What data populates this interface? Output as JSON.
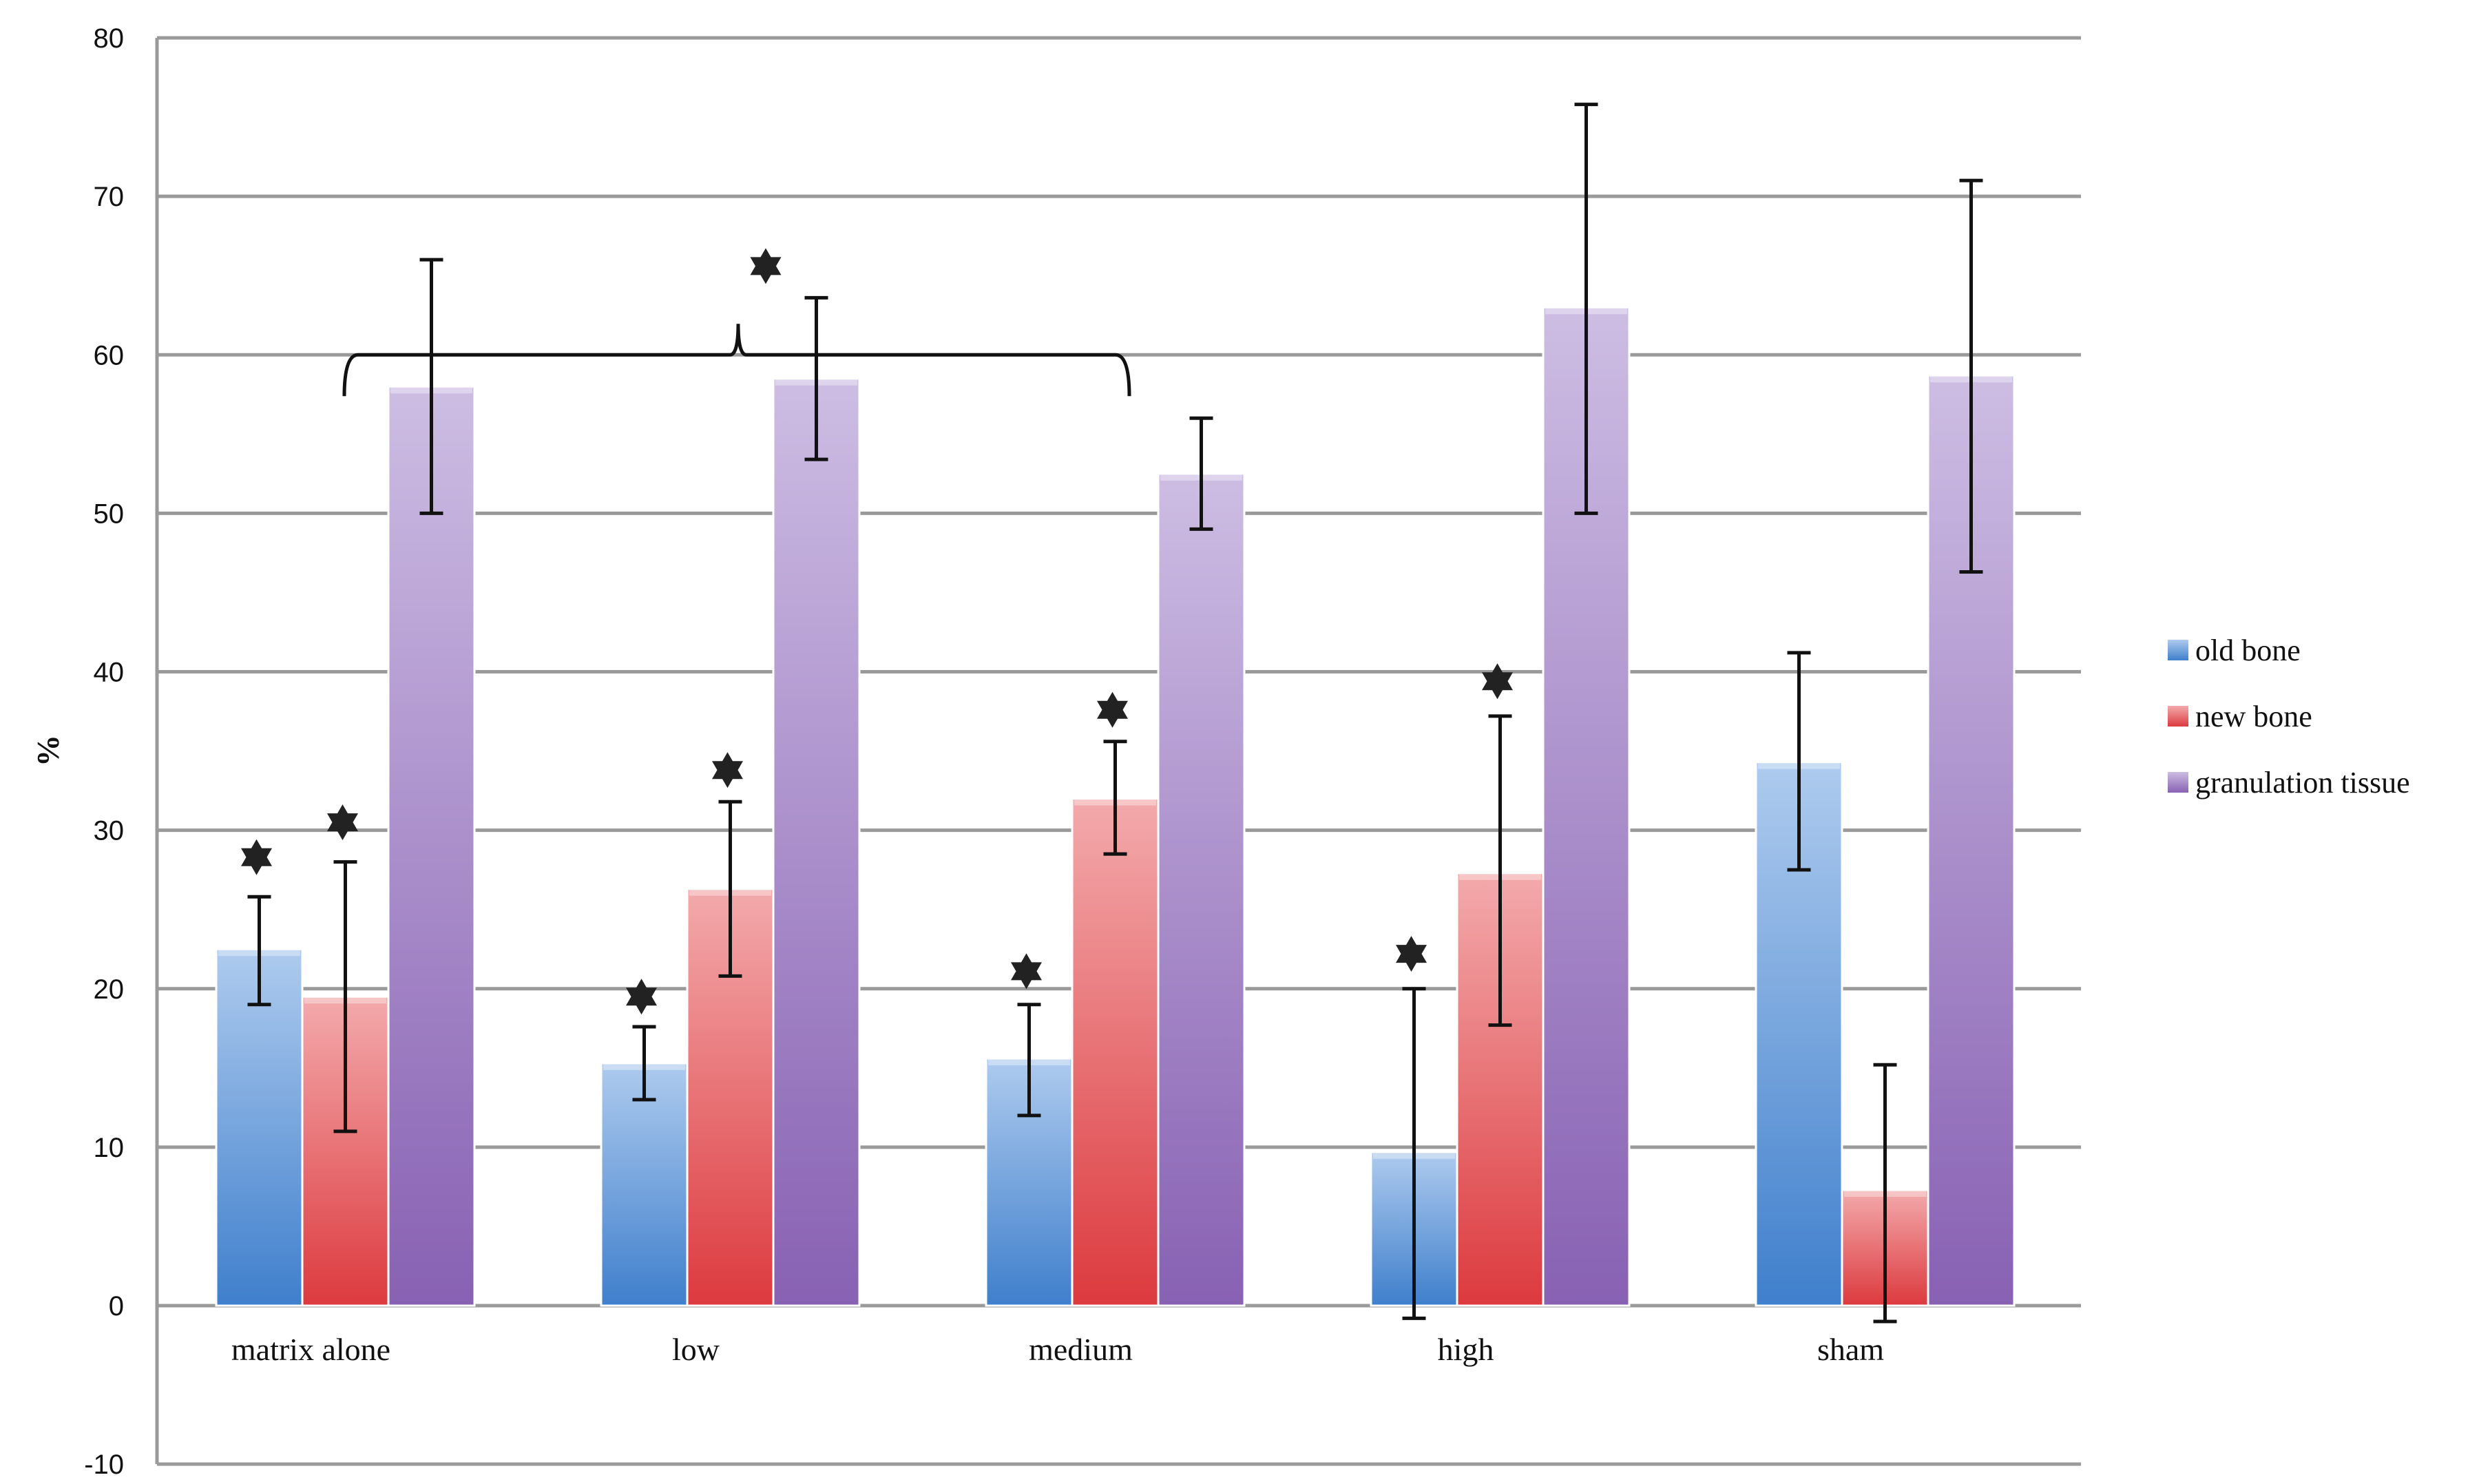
{
  "colors": {
    "old bone": "#4f8fd8",
    "new bone": "#e2474b",
    "granulation tissue": "#9470bd",
    "grid": "#9a9a9a",
    "background": "#ffffff"
  },
  "chart_data": {
    "type": "bar",
    "title": "",
    "xlabel": "",
    "ylabel": "%",
    "ylim": [
      -10,
      80
    ],
    "yticks": [
      -10,
      0,
      10,
      20,
      30,
      40,
      50,
      60,
      70,
      80
    ],
    "grid": true,
    "legend_position": "right",
    "categories": [
      "matrix alone",
      "low",
      "medium",
      "high",
      "sham"
    ],
    "series": [
      {
        "name": "old bone",
        "values": [
          22.5,
          15.3,
          15.6,
          9.7,
          34.3
        ],
        "error_low": [
          19.0,
          13.0,
          12.0,
          -0.8,
          27.5
        ],
        "error_high": [
          25.8,
          17.6,
          19.0,
          20.0,
          41.2
        ]
      },
      {
        "name": "new bone",
        "values": [
          19.5,
          26.3,
          32.0,
          27.3,
          7.3
        ],
        "error_low": [
          11.0,
          20.8,
          28.5,
          17.7,
          -1.0
        ],
        "error_high": [
          28.0,
          31.8,
          35.6,
          37.2,
          15.2
        ]
      },
      {
        "name": "granulation tissue",
        "values": [
          58.0,
          58.5,
          52.5,
          63.0,
          58.7
        ],
        "error_low": [
          50.0,
          53.4,
          49.0,
          50.0,
          46.3
        ],
        "error_high": [
          66.0,
          63.6,
          56.0,
          75.8,
          71.0
        ]
      }
    ],
    "significance_markers": [
      {
        "category": "matrix alone",
        "series": "old bone",
        "y": 28.3
      },
      {
        "category": "matrix alone",
        "series": "new bone",
        "y": 30.5
      },
      {
        "category": "low",
        "series": "old bone",
        "y": 19.5
      },
      {
        "category": "low",
        "series": "new bone",
        "y": 33.8
      },
      {
        "category": "medium",
        "series": "old bone",
        "y": 21.1
      },
      {
        "category": "medium",
        "series": "new bone",
        "y": 37.6
      },
      {
        "category": "high",
        "series": "old bone",
        "y": 22.2
      },
      {
        "category": "high",
        "series": "new bone",
        "y": 39.4
      }
    ],
    "bracket": {
      "from": "matrix alone",
      "to": "medium",
      "y": 60,
      "star_y": 65.6
    }
  }
}
